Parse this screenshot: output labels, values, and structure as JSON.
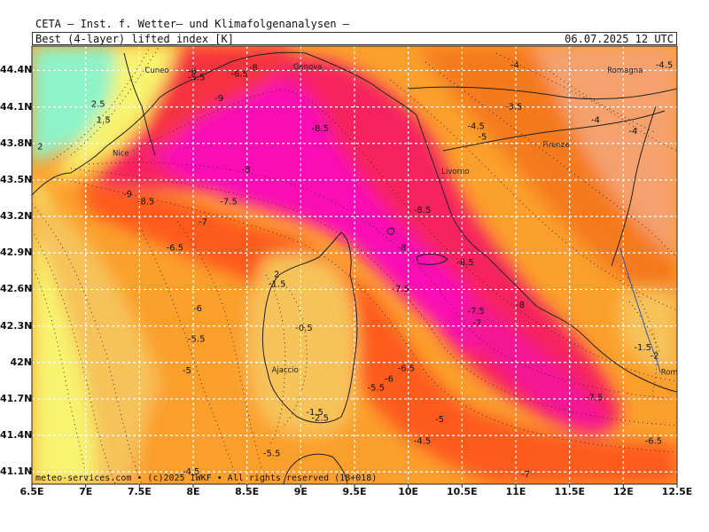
{
  "header": {
    "institute": "CETA — Inst. f. Wetter— und Klimafolgenanalysen —",
    "parameter": "Best_(4-layer)_lifted_index_[K]",
    "date": "06.07.2025 12 UTC"
  },
  "footer": {
    "credit": "meteo-services.com • (c)2025 IWKF • All rights reserved (18+018)"
  },
  "map": {
    "lon_range": [
      6.5,
      12.5
    ],
    "lat_range": [
      41.0,
      44.6
    ],
    "lon_labels": [
      "6.5E",
      "7E",
      "7.5E",
      "8E",
      "8.5E",
      "9E",
      "9.5E",
      "10E",
      "10.5E",
      "11E",
      "11.5E",
      "12E",
      "12.5E"
    ],
    "lat_labels": [
      "44.4N",
      "44.1N",
      "43.8N",
      "43.5N",
      "43.2N",
      "42.9N",
      "42.6N",
      "42.3N",
      "42N",
      "41.7N",
      "41.4N",
      "41.1N"
    ],
    "cities": [
      {
        "name": "Cuneo",
        "lon": 7.55,
        "lat": 44.38
      },
      {
        "name": "Genova",
        "lon": 8.93,
        "lat": 44.41
      },
      {
        "name": "Romagna",
        "lon": 11.85,
        "lat": 44.38
      },
      {
        "name": "Nice",
        "lon": 7.25,
        "lat": 43.7
      },
      {
        "name": "Firenze",
        "lon": 11.25,
        "lat": 43.77
      },
      {
        "name": "Livorno",
        "lon": 10.31,
        "lat": 43.55
      },
      {
        "name": "Ajaccio",
        "lon": 8.73,
        "lat": 41.92
      },
      {
        "name": "Rome",
        "lon": 12.35,
        "lat": 41.9
      }
    ],
    "contour_labels": [
      {
        "text": "-6",
        "lon": 7.95,
        "lat": 44.37
      },
      {
        "text": "-5.5",
        "lon": 7.95,
        "lat": 44.32
      },
      {
        "text": "-6.5",
        "lon": 8.35,
        "lat": 44.35
      },
      {
        "text": "-8",
        "lon": 8.52,
        "lat": 44.4
      },
      {
        "text": "-9",
        "lon": 8.2,
        "lat": 44.15
      },
      {
        "text": "2.5",
        "lon": 7.05,
        "lat": 44.1
      },
      {
        "text": "1.5",
        "lon": 7.1,
        "lat": 43.97
      },
      {
        "text": "2",
        "lon": 6.55,
        "lat": 43.75
      },
      {
        "text": "-4",
        "lon": 10.95,
        "lat": 44.42
      },
      {
        "text": "-3.5",
        "lon": 10.9,
        "lat": 44.08
      },
      {
        "text": "-4.5",
        "lon": 10.55,
        "lat": 43.92
      },
      {
        "text": "-5",
        "lon": 10.65,
        "lat": 43.83
      },
      {
        "text": "-4",
        "lon": 11.7,
        "lat": 43.97
      },
      {
        "text": "-4",
        "lon": 12.05,
        "lat": 43.88
      },
      {
        "text": "-4.5",
        "lon": 12.3,
        "lat": 44.42
      },
      {
        "text": "-8.5",
        "lon": 9.1,
        "lat": 43.9
      },
      {
        "text": "-8",
        "lon": 8.45,
        "lat": 43.56
      },
      {
        "text": "-9",
        "lon": 7.35,
        "lat": 43.36
      },
      {
        "text": "-8.5",
        "lon": 7.48,
        "lat": 43.3
      },
      {
        "text": "-7.5",
        "lon": 8.25,
        "lat": 43.3
      },
      {
        "text": "-7",
        "lon": 8.05,
        "lat": 43.13
      },
      {
        "text": "-8.5",
        "lon": 10.05,
        "lat": 43.23
      },
      {
        "text": "-8",
        "lon": 9.9,
        "lat": 42.92
      },
      {
        "text": "-8.5",
        "lon": 10.45,
        "lat": 42.8
      },
      {
        "text": "-6.5",
        "lon": 7.75,
        "lat": 42.92
      },
      {
        "text": "-7.5",
        "lon": 9.85,
        "lat": 42.58
      },
      {
        "text": "-7.5",
        "lon": 10.55,
        "lat": 42.4
      },
      {
        "text": "-8",
        "lon": 11.0,
        "lat": 42.45
      },
      {
        "text": "-7",
        "lon": 10.6,
        "lat": 42.3
      },
      {
        "text": "-6",
        "lon": 8.0,
        "lat": 42.42
      },
      {
        "text": "-5.5",
        "lon": 7.95,
        "lat": 42.17
      },
      {
        "text": "-5",
        "lon": 7.9,
        "lat": 41.91
      },
      {
        "text": "-1.5",
        "lon": 8.7,
        "lat": 42.62
      },
      {
        "text": "2",
        "lon": 8.75,
        "lat": 42.7
      },
      {
        "text": "-0.5",
        "lon": 8.95,
        "lat": 42.26
      },
      {
        "text": "-6.5",
        "lon": 9.9,
        "lat": 41.93
      },
      {
        "text": "-6",
        "lon": 9.78,
        "lat": 41.84
      },
      {
        "text": "-5.5",
        "lon": 9.62,
        "lat": 41.77
      },
      {
        "text": "-5",
        "lon": 10.25,
        "lat": 41.51
      },
      {
        "text": "-4.5",
        "lon": 10.05,
        "lat": 41.33
      },
      {
        "text": "-5.5",
        "lon": 8.65,
        "lat": 41.23
      },
      {
        "text": "-4.5",
        "lon": 7.9,
        "lat": 41.08
      },
      {
        "text": "-1.5",
        "lon": 9.05,
        "lat": 41.57
      },
      {
        "text": "-2.5",
        "lon": 9.1,
        "lat": 41.52
      },
      {
        "text": "-7.5",
        "lon": 11.65,
        "lat": 41.69
      },
      {
        "text": "-6.5",
        "lon": 12.2,
        "lat": 41.33
      },
      {
        "text": "-7",
        "lon": 11.05,
        "lat": 41.06
      },
      {
        "text": "-1.5",
        "lon": 12.1,
        "lat": 42.1
      },
      {
        "text": "-2",
        "lon": 12.25,
        "lat": 42.03
      }
    ],
    "colors": {
      "mint": "#8ef3c8",
      "yellow": "#f8f36e",
      "light_orange": "#f6c25a",
      "salmon": "#f4a16e",
      "orange": "#fb9f2c",
      "dark_orange": "#f57a1f",
      "red_orange": "#fe5a1b",
      "red": "#f63340",
      "crimson": "#f7245e",
      "magenta": "#f51396",
      "pink": "#fa0fb4",
      "grid": "#ffffff",
      "coast": "#202020"
    }
  }
}
